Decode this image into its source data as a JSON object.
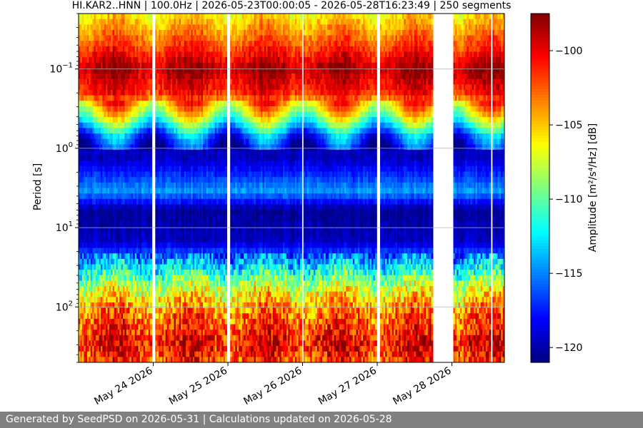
{
  "chart_data": {
    "type": "heatmap",
    "title": "HI.KAR2..HNN | 100.0Hz | 2026-05-23T00:00:05 - 2026-05-28T16:23:49 | 250 segments",
    "ylabel": "Period [s]",
    "colorbar_label": "Amplitude [m²/s⁴/Hz] [dB]",
    "colormap": "jet",
    "colorbar_range": [
      -121,
      -97.5
    ],
    "colorbar_ticks": [
      -100,
      -105,
      -110,
      -115,
      -120
    ],
    "y_scale": "log",
    "y_inverted": true,
    "ylim": [
      0.02,
      500
    ],
    "y_ticks": [
      {
        "value": 0.1,
        "base": "10",
        "exp": "−1"
      },
      {
        "value": 1,
        "base": "10",
        "exp": "0"
      },
      {
        "value": 10,
        "base": "10",
        "exp": "1"
      },
      {
        "value": 100,
        "base": "10",
        "exp": "2"
      }
    ],
    "x_range_days": [
      0,
      5.68
    ],
    "x_ticks": [
      {
        "day": 1,
        "label": "May 24 2026"
      },
      {
        "day": 2,
        "label": "May 25 2026"
      },
      {
        "day": 3,
        "label": "May 26 2026"
      },
      {
        "day": 4,
        "label": "May 27 2026"
      },
      {
        "day": 5,
        "label": "May 28 2026"
      }
    ],
    "gaps_days": [
      [
        0.98,
        1.02
      ],
      [
        1.98,
        2.02
      ],
      [
        2.98,
        3.0
      ],
      [
        3.98,
        4.02
      ],
      [
        4.72,
        5.0
      ],
      [
        5.5,
        5.52
      ]
    ],
    "grid": "horizontal",
    "bands": [
      {
        "period": 0.02,
        "value": -106
      },
      {
        "period": 0.05,
        "value": -102
      },
      {
        "period": 0.1,
        "value": -98.5
      },
      {
        "period": 0.2,
        "value": -101
      },
      {
        "period": 0.4,
        "value": -108
      },
      {
        "period": 0.7,
        "value": -116
      },
      {
        "period": 1.2,
        "value": -120
      },
      {
        "period": 2.2,
        "value": -117
      },
      {
        "period": 3.5,
        "value": -114.5
      },
      {
        "period": 6,
        "value": -120.5
      },
      {
        "period": 15,
        "value": -119.5
      },
      {
        "period": 30,
        "value": -113
      },
      {
        "period": 60,
        "value": -107
      },
      {
        "period": 120,
        "value": -103
      },
      {
        "period": 300,
        "value": -100
      },
      {
        "period": 500,
        "value": -102
      }
    ]
  },
  "footer": {
    "text": "Generated by SeedPSD on 2026-05-31 | Calculations updated on 2026-05-28"
  }
}
